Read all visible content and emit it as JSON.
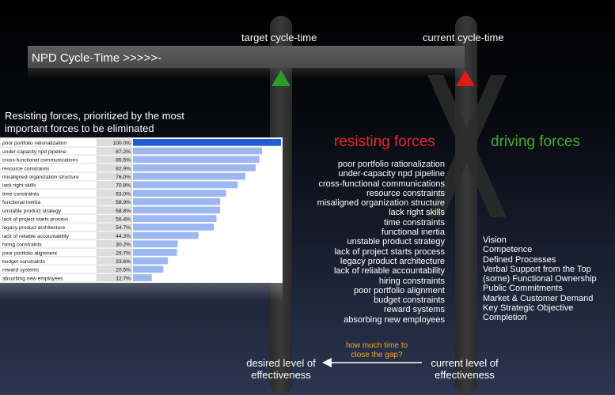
{
  "colors": {
    "target_marker": "#2e9d27",
    "current_marker": "#e0191a",
    "resisting": "#e8262a",
    "driving": "#41b02e",
    "gap_question": "#f0a830",
    "bar": "#9db7f2",
    "bar_top": "#1f5fd6"
  },
  "header": {
    "target_label": "target cycle-time",
    "current_label": "current cycle-time",
    "cycle_bar_title": "NPD Cycle-Time >>>>>-"
  },
  "chart_caption": "Resisting forces, prioritized by the most important forces to be eliminated",
  "chart_data": {
    "type": "bar",
    "orientation": "horizontal",
    "categories": [
      "poor portfolio rationalization",
      "under-capacity npd pipeline",
      "cross-functional communications",
      "resource constraints",
      "misaligned organization structure",
      "lack right skills",
      "time constraints",
      "functional inertia",
      "unstable product strategy",
      "lack of project starts process",
      "legacy product architecture",
      "lack of reliable accountability",
      "hiring constraints",
      "poor portfolio alignment",
      "budget constraints",
      "reward systems",
      "absorbing new employees"
    ],
    "values": [
      100.0,
      87.2,
      85.5,
      82.9,
      76.0,
      70.8,
      63.0,
      58.9,
      58.8,
      56.4,
      54.7,
      44.3,
      30.2,
      29.7,
      23.6,
      20.5,
      12.7
    ],
    "labels": [
      "100.0%",
      "87.2%",
      "85.5%",
      "82.9%",
      "76.0%",
      "70.8%",
      "63.0%",
      "58.9%",
      "58.8%",
      "56.4%",
      "54.7%",
      "44.3%",
      "30.2%",
      "29.7%",
      "23.6%",
      "20.5%",
      "12.7%"
    ],
    "xlim": [
      0,
      100
    ]
  },
  "forces": {
    "resisting_title": "resisting forces",
    "driving_title": "driving forces",
    "resisting": [
      "poor portfolio rationalization",
      "under-capacity npd pipeline",
      "cross-functional communications",
      "resource constraints",
      "misaligned organization structure",
      "lack right skills",
      "time constraints",
      "functional inertia",
      "unstable product strategy",
      "lack of project starts process",
      "legacy product architecture",
      "lack of reliable accountability",
      "hiring constraints",
      "poor portfolio alignment",
      "budget constraints",
      "reward systems",
      "absorbing new employees"
    ],
    "driving": [
      "Vision",
      "Competence",
      "Defined Processes",
      "Verbal Support from the Top",
      "(some) Functional Ownership",
      "Public Commitments",
      "Market & Customer Demand",
      "Key Strategic Objective",
      "Completion"
    ]
  },
  "bottom": {
    "desired_line1": "desired level of",
    "desired_line2": "effectiveness",
    "current_line1": "current level of",
    "current_line2": "effectiveness",
    "gap_line1": "how much time to",
    "gap_line2": "close the gap?"
  }
}
